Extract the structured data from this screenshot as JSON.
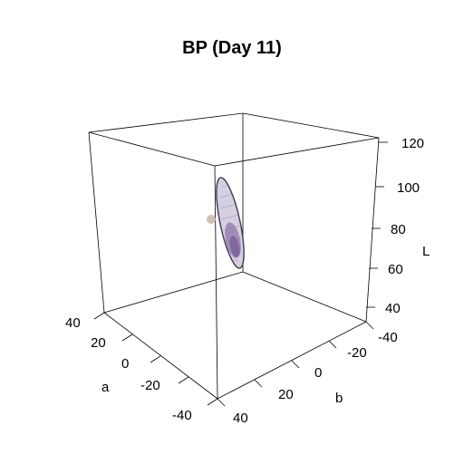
{
  "chart_data": {
    "type": "scatter",
    "title": "BP (Day 11)",
    "axes": {
      "L": {
        "label": "L",
        "ticks": [
          "40",
          "60",
          "80",
          "100",
          "120"
        ],
        "range": [
          40,
          120
        ]
      },
      "a": {
        "label": "a",
        "ticks": [
          "-40",
          "-20",
          "0",
          "20",
          "40"
        ],
        "range": [
          -40,
          40
        ]
      },
      "b": {
        "label": "b",
        "ticks": [
          "-20",
          "0",
          "20",
          "40"
        ],
        "range": [
          -40,
          40
        ]
      }
    },
    "b_axis_outer_tick_label": "-40",
    "point": {
      "a": 10,
      "b": -25,
      "L": 85
    },
    "colors": {
      "point": "#d2bfb0",
      "ellipsoid_fill": "#d6cfe1",
      "ellipsoid_dark": "#6d4e8a",
      "ellipsoid_outline": "#3a3a4a",
      "box": "#000000"
    }
  }
}
